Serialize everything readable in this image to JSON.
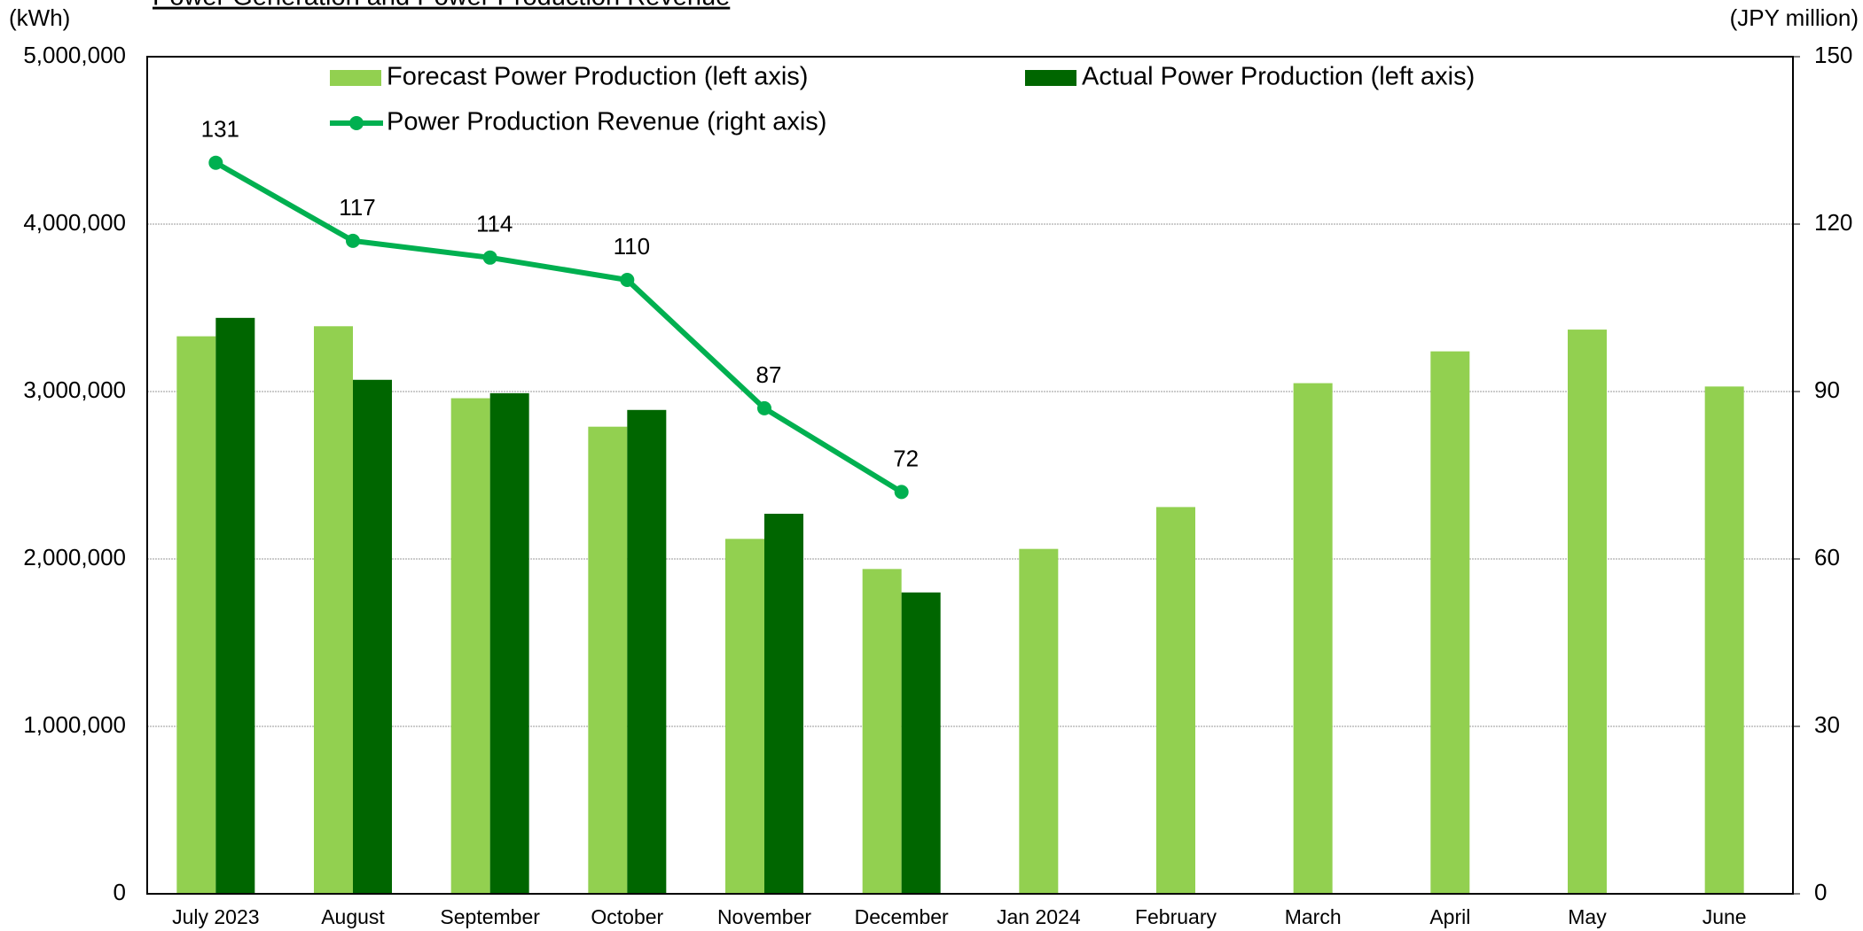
{
  "chart_data": {
    "type": "bar",
    "title": "Power Generation and Power Production Revenue",
    "y_label": "(kWh)",
    "y2_label": "(JPY million)",
    "categories": [
      "July 2023",
      "August",
      "September",
      "October",
      "November",
      "December",
      "Jan 2024",
      "February",
      "March",
      "April",
      "May",
      "June"
    ],
    "series": [
      {
        "name": "Forecast Power Production (left axis)",
        "color": "#92d050",
        "type": "bar",
        "values": [
          3330000,
          3390000,
          2960000,
          2790000,
          2120000,
          1940000,
          2060000,
          2310000,
          3050000,
          3240000,
          3370000,
          3030000
        ]
      },
      {
        "name": "Actual Power Production (left axis)",
        "color": "#006600",
        "type": "bar",
        "values": [
          3440000,
          3070000,
          2990000,
          2890000,
          2270000,
          1800000,
          null,
          null,
          null,
          null,
          null,
          null
        ]
      },
      {
        "name": "Power Production Revenue (right axis)",
        "color": "#00b050",
        "type": "line",
        "axis": "y2",
        "values": [
          131,
          117,
          114,
          110,
          87,
          72,
          null,
          null,
          null,
          null,
          null,
          null
        ]
      }
    ],
    "ylim": [
      0,
      5000000
    ],
    "yticks": [
      0,
      {
        "value": 1000000,
        "label": "1,000,000"
      },
      {
        "value": 2000000,
        "label": "2,000,000"
      },
      {
        "value": 3000000,
        "label": "3,000,000"
      },
      {
        "value": 4000000,
        "label": "4,000,000"
      },
      {
        "value": 5000000,
        "label": "5,000,000"
      }
    ],
    "y2lim": [
      0,
      150
    ],
    "y2ticks": [
      0,
      30,
      60,
      90,
      120,
      150
    ],
    "grid": true
  }
}
